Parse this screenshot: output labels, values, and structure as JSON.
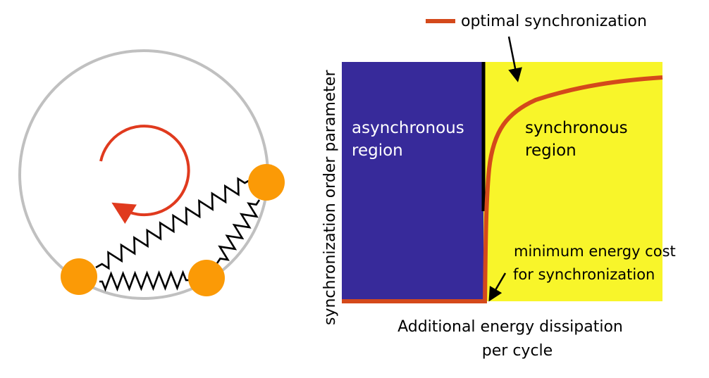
{
  "colors": {
    "ring": "#c0c0c0",
    "rotation_arrow": "#e03a1e",
    "oscillator": "#fb9a06",
    "spring": "#000000",
    "async_region": "#372a9a",
    "sync_region": "#f8f52a",
    "curve": "#d4491b",
    "boundary": "#000000"
  },
  "schematic": {
    "oscillator_count": 3,
    "spring_count": 3
  },
  "legend": {
    "label": "optimal synchronization"
  },
  "regions": {
    "async_line1": "asynchronous",
    "async_line2": "region",
    "sync_line1": "synchronous",
    "sync_line2": "region"
  },
  "annotation": {
    "line1": "minimum energy cost",
    "line2": "for synchronization"
  },
  "axes": {
    "ylabel": "synchronization  order parameter",
    "xlabel_line1": "Additional energy dissipation",
    "xlabel_line2": "per cycle"
  }
}
